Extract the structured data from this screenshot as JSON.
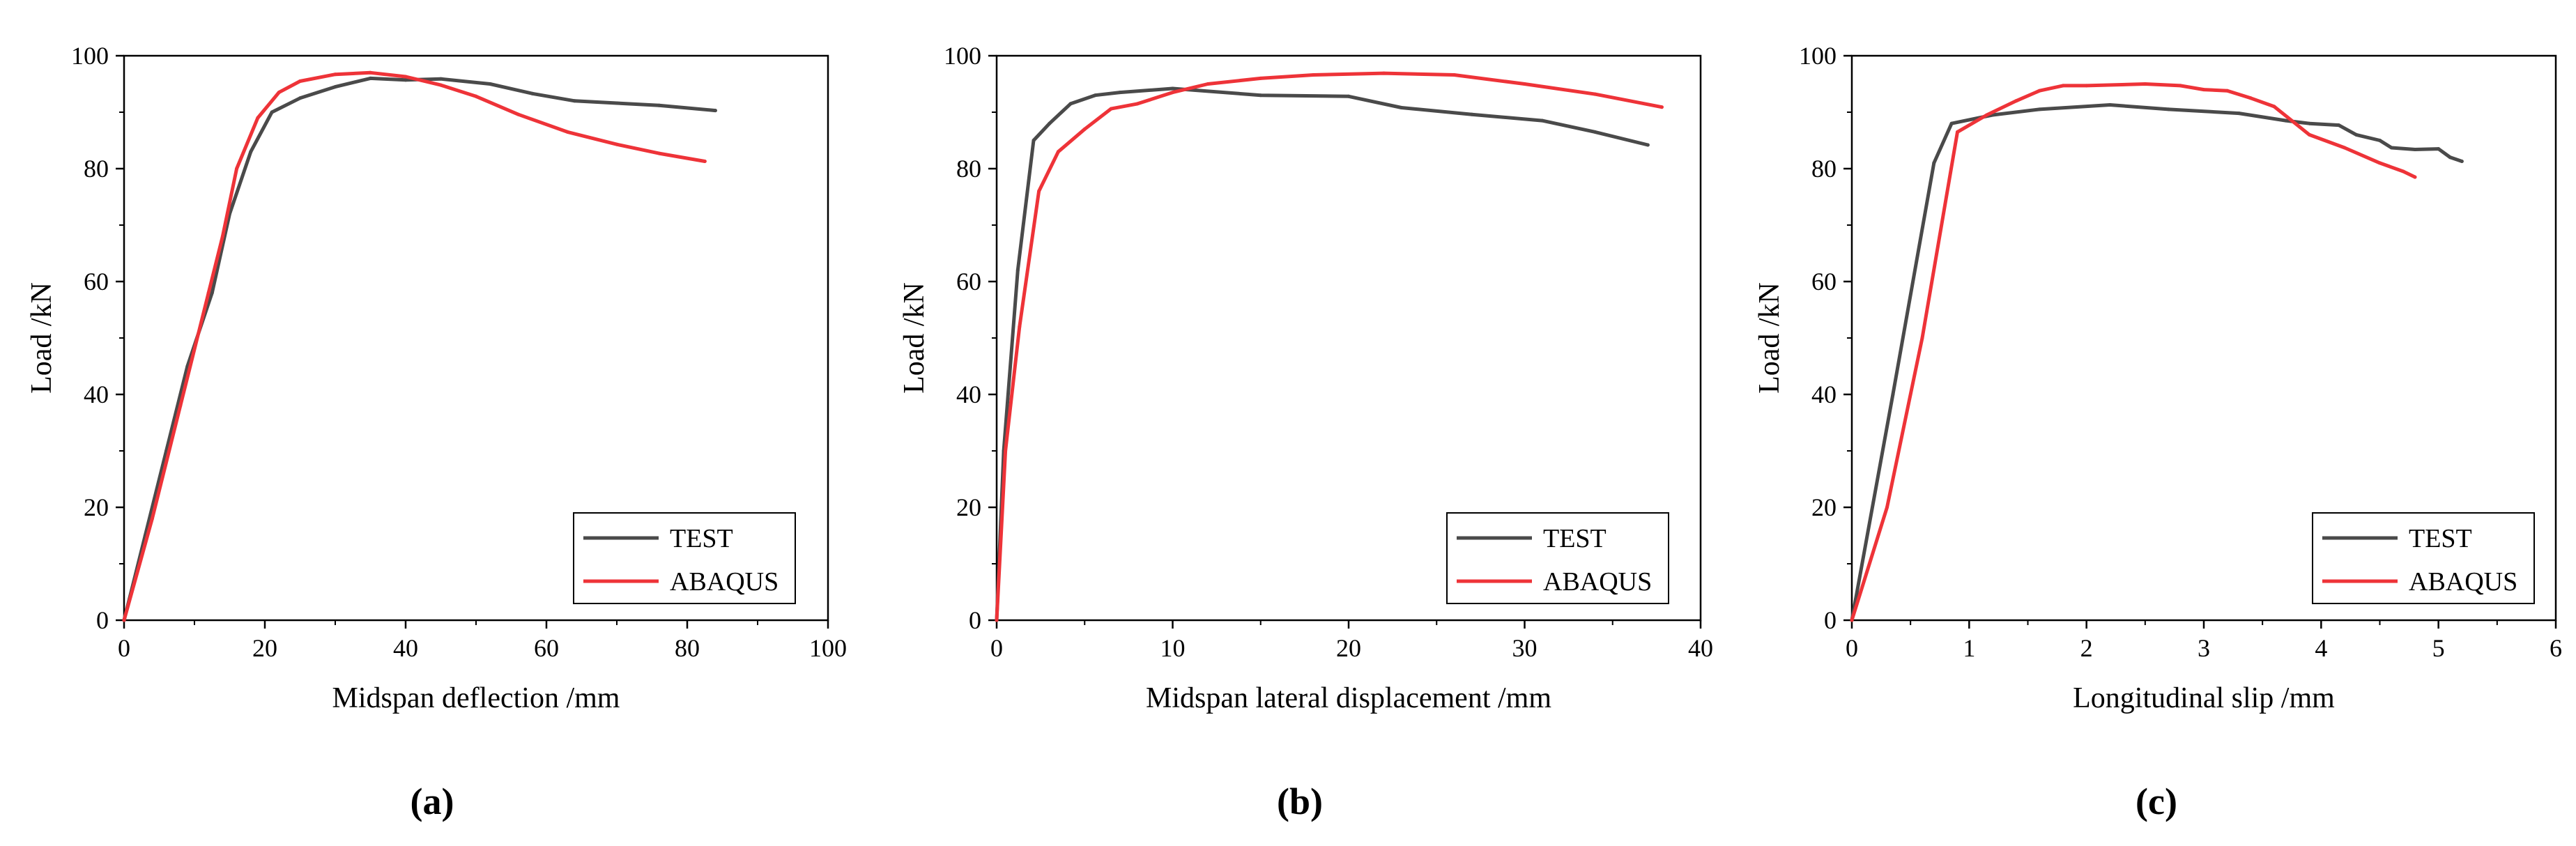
{
  "colors": {
    "test": "#4a4a4a",
    "abaqus": "#ee3338",
    "axis": "#000000",
    "background": "#ffffff"
  },
  "chart_data": [
    {
      "type": "line",
      "panel_label": "(a)",
      "xlabel": "Midspan deflection /mm",
      "ylabel": "Load /kN",
      "xlim": [
        0,
        100
      ],
      "ylim": [
        0,
        100
      ],
      "xticks": [
        0,
        20,
        40,
        60,
        80,
        100
      ],
      "yticks": [
        0,
        20,
        40,
        60,
        80,
        100
      ],
      "grid": false,
      "legend_position": "bottom-right",
      "series": [
        {
          "name": "TEST",
          "color": "#4a4a4a",
          "points": [
            [
              0,
              0
            ],
            [
              3,
              15
            ],
            [
              6,
              30
            ],
            [
              9,
              45
            ],
            [
              12.5,
              58
            ],
            [
              15,
              72
            ],
            [
              18,
              83
            ],
            [
              21,
              90
            ],
            [
              25,
              92.5
            ],
            [
              30,
              94.5
            ],
            [
              35,
              96
            ],
            [
              40,
              95.7
            ],
            [
              45,
              95.9
            ],
            [
              52,
              95
            ],
            [
              58,
              93.3
            ],
            [
              64,
              92
            ],
            [
              70,
              91.6
            ],
            [
              76,
              91.2
            ],
            [
              84,
              90.3
            ]
          ]
        },
        {
          "name": "ABAQUS",
          "color": "#ee3338",
          "points": [
            [
              0,
              0
            ],
            [
              4,
              18
            ],
            [
              8,
              38
            ],
            [
              12,
              58
            ],
            [
              14,
              68
            ],
            [
              16,
              80
            ],
            [
              19,
              89
            ],
            [
              22,
              93.5
            ],
            [
              25,
              95.5
            ],
            [
              30,
              96.7
            ],
            [
              35,
              97
            ],
            [
              40,
              96.3
            ],
            [
              45,
              94.8
            ],
            [
              50,
              92.8
            ],
            [
              56,
              89.6
            ],
            [
              63,
              86.5
            ],
            [
              70,
              84.3
            ],
            [
              76,
              82.7
            ],
            [
              82.5,
              81.3
            ]
          ]
        }
      ]
    },
    {
      "type": "line",
      "panel_label": "(b)",
      "xlabel": "Midspan lateral displacement /mm",
      "ylabel": "Load /kN",
      "xlim": [
        0,
        40
      ],
      "ylim": [
        0,
        100
      ],
      "xticks": [
        0,
        10,
        20,
        30,
        40
      ],
      "yticks": [
        0,
        20,
        40,
        60,
        80,
        100
      ],
      "grid": false,
      "legend_position": "bottom-right",
      "series": [
        {
          "name": "TEST",
          "color": "#4a4a4a",
          "points": [
            [
              0,
              0
            ],
            [
              0.4,
              30
            ],
            [
              1.2,
              62
            ],
            [
              2.1,
              85
            ],
            [
              3,
              88
            ],
            [
              4.2,
              91.5
            ],
            [
              5.6,
              93
            ],
            [
              7,
              93.5
            ],
            [
              10,
              94.2
            ],
            [
              15,
              93
            ],
            [
              20,
              92.8
            ],
            [
              23,
              90.8
            ],
            [
              27,
              89.6
            ],
            [
              31,
              88.5
            ],
            [
              34,
              86.5
            ],
            [
              37,
              84.2
            ]
          ]
        },
        {
          "name": "ABAQUS",
          "color": "#ee3338",
          "points": [
            [
              0,
              0
            ],
            [
              0.5,
              30
            ],
            [
              1.3,
              52
            ],
            [
              2.4,
              76
            ],
            [
              3.5,
              83
            ],
            [
              5,
              87
            ],
            [
              6.5,
              90.6
            ],
            [
              8,
              91.5
            ],
            [
              10,
              93.5
            ],
            [
              12,
              95
            ],
            [
              15,
              96
            ],
            [
              18,
              96.6
            ],
            [
              22,
              96.9
            ],
            [
              26,
              96.6
            ],
            [
              30,
              95
            ],
            [
              34,
              93.2
            ],
            [
              37.8,
              90.9
            ]
          ]
        }
      ]
    },
    {
      "type": "line",
      "panel_label": "(c)",
      "xlabel": "Longitudinal slip /mm",
      "ylabel": "Load /kN",
      "xlim": [
        0,
        6
      ],
      "ylim": [
        0,
        100
      ],
      "xticks": [
        0,
        1,
        2,
        3,
        4,
        5,
        6
      ],
      "yticks": [
        0,
        20,
        40,
        60,
        80,
        100
      ],
      "grid": false,
      "legend_position": "bottom-right",
      "series": [
        {
          "name": "TEST",
          "color": "#4a4a4a",
          "points": [
            [
              0,
              0
            ],
            [
              0.35,
              40
            ],
            [
              0.7,
              81
            ],
            [
              0.85,
              88
            ],
            [
              1.2,
              89.5
            ],
            [
              1.6,
              90.5
            ],
            [
              2.2,
              91.3
            ],
            [
              2.7,
              90.5
            ],
            [
              3.3,
              89.8
            ],
            [
              3.7,
              88.5
            ],
            [
              3.9,
              88
            ],
            [
              4.15,
              87.7
            ],
            [
              4.3,
              86
            ],
            [
              4.5,
              85
            ],
            [
              4.6,
              83.7
            ],
            [
              4.8,
              83.4
            ],
            [
              5,
              83.5
            ],
            [
              5.1,
              82
            ],
            [
              5.2,
              81.3
            ]
          ]
        },
        {
          "name": "ABAQUS",
          "color": "#ee3338",
          "points": [
            [
              0,
              0
            ],
            [
              0.3,
              20
            ],
            [
              0.6,
              50
            ],
            [
              0.9,
              86.5
            ],
            [
              1.15,
              89.5
            ],
            [
              1.4,
              92
            ],
            [
              1.6,
              93.8
            ],
            [
              1.8,
              94.7
            ],
            [
              2,
              94.7
            ],
            [
              2.5,
              95
            ],
            [
              2.8,
              94.7
            ],
            [
              3,
              94
            ],
            [
              3.2,
              93.8
            ],
            [
              3.4,
              92.5
            ],
            [
              3.6,
              91
            ],
            [
              3.9,
              86
            ],
            [
              4.2,
              83.7
            ],
            [
              4.5,
              81
            ],
            [
              4.7,
              79.5
            ],
            [
              4.8,
              78.5
            ]
          ]
        }
      ]
    }
  ]
}
